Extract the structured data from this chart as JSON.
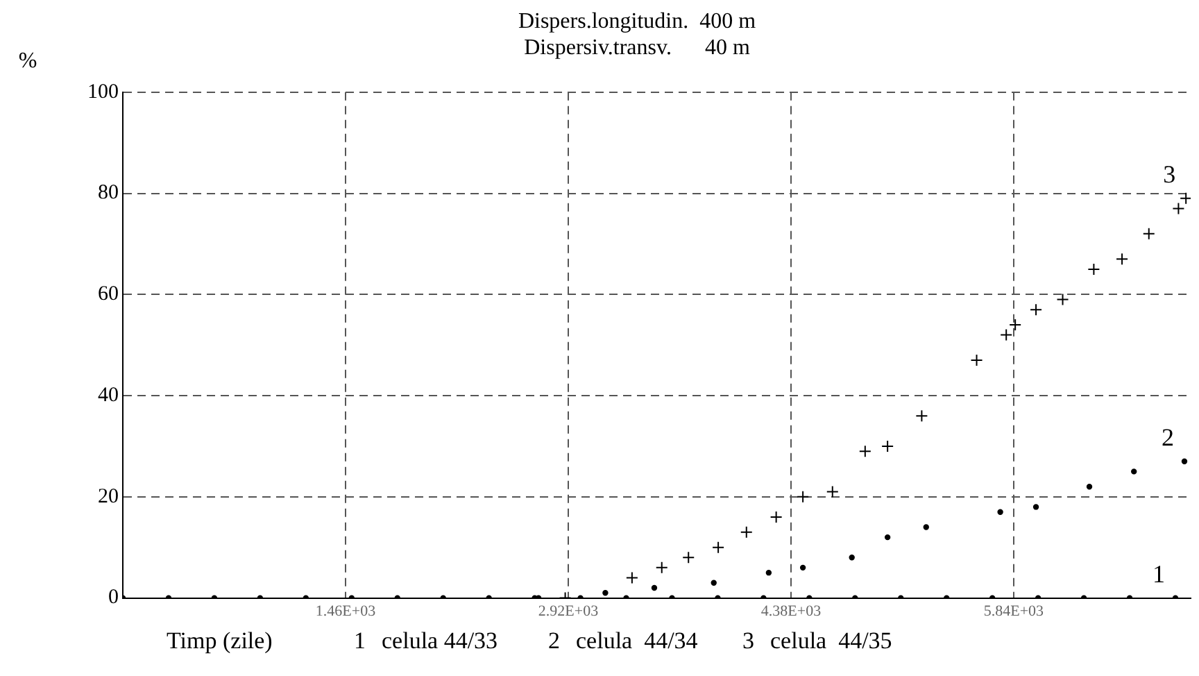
{
  "chart_data": {
    "type": "scatter",
    "title": "Dispers.longitudin.  400 m",
    "subtitle": "Dispersiv.transv.      40 m",
    "xlabel": "Timp (zile)",
    "ylabel": "%",
    "xlim": [
      0,
      7000
    ],
    "xticks": [
      {
        "value": 1460,
        "label": "1.46E+03"
      },
      {
        "value": 2920,
        "label": "2.92E+03"
      },
      {
        "value": 4380,
        "label": "4.38E+03"
      },
      {
        "value": 5840,
        "label": "5.84E+03"
      }
    ],
    "ylim": [
      0,
      100
    ],
    "yticks": [
      0,
      20,
      40,
      60,
      80,
      100
    ],
    "grid": true,
    "line_style": "dashed",
    "legend": "bottom",
    "series": [
      {
        "name": "1",
        "color": "#000000",
        "marker": "circle",
        "x": [
          0,
          300,
          600,
          900,
          1200,
          1500,
          1800,
          2100,
          2400,
          2700,
          3000,
          3300,
          3600,
          3900,
          4200,
          4500,
          4800,
          5100,
          5400,
          5700,
          6000,
          6300,
          6600,
          6900
        ],
        "values": [
          0,
          0,
          0,
          0,
          0,
          0,
          0,
          0,
          0,
          0,
          0,
          0,
          0,
          0,
          0,
          0,
          0,
          0,
          0,
          0,
          0,
          0,
          0,
          0
        ]
      },
      {
        "name": "2",
        "color": "#000000",
        "marker": "circle",
        "x": [
          2725,
          3163,
          3484,
          3874,
          4234,
          4458,
          4779,
          5013,
          5266,
          5752,
          5986,
          6336,
          6628,
          6959
        ],
        "values": [
          0,
          1,
          2,
          3,
          5,
          6,
          8,
          12,
          14,
          17,
          18,
          22,
          25,
          27
        ]
      },
      {
        "name": "3",
        "color": "#000000",
        "marker": "cross",
        "x": [
          2900,
          3338,
          3533,
          3708,
          3903,
          4088,
          4283,
          4458,
          4652,
          4866,
          5013,
          5237,
          5597,
          5791,
          5850,
          5986,
          6161,
          6365,
          6550,
          6726,
          6920,
          6969
        ],
        "values": [
          0,
          4,
          6,
          8,
          10,
          13,
          16,
          20,
          21,
          29,
          30,
          36,
          47,
          52,
          54,
          57,
          59,
          65,
          67,
          72,
          77,
          79
        ]
      }
    ],
    "annotations": [
      "celula 44/33",
      "celula  44/34",
      "celula  44/35"
    ]
  }
}
